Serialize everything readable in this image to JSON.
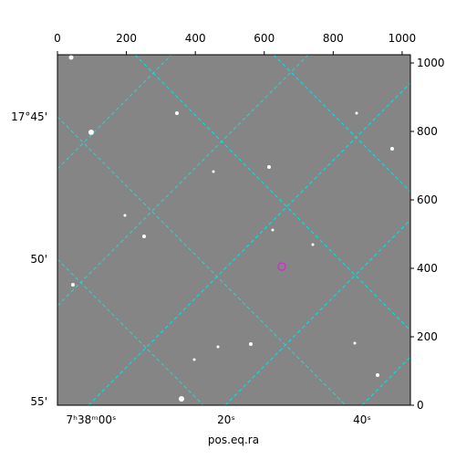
{
  "chart_data": {
    "type": "image",
    "x_label": "pos.eq.ra",
    "xlim": [
      0,
      1024
    ],
    "xticks": [
      0,
      200,
      400,
      600,
      800,
      1000
    ],
    "ylim": [
      0,
      1024
    ],
    "yticks": [
      0,
      200,
      400,
      600,
      800,
      1000
    ],
    "ra_ticks": [
      "7ʰ38ᵐ00ˢ",
      "20ˢ",
      "40ˢ"
    ],
    "dec_ticks": [
      "17°45'",
      "50'",
      "55'"
    ],
    "marker": {
      "x": 651,
      "y": 405,
      "color": "#e020e0"
    },
    "grid_color": "#00e5e5"
  }
}
